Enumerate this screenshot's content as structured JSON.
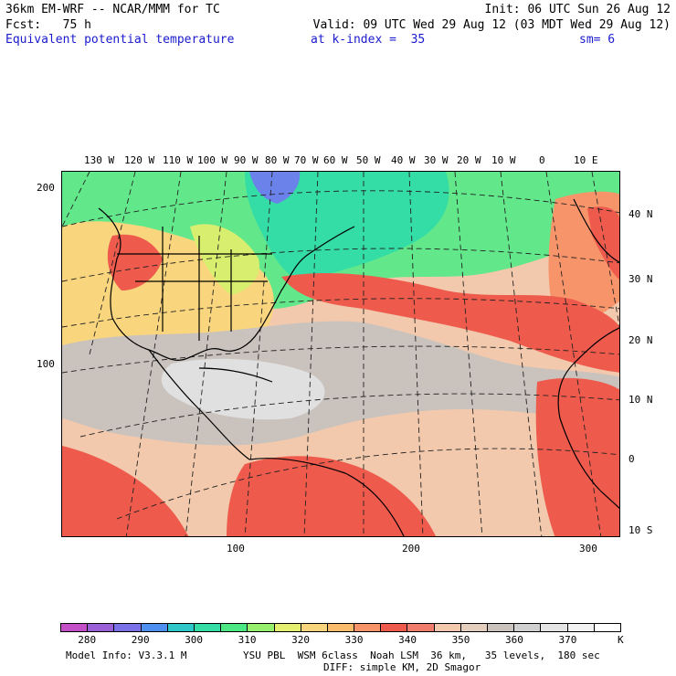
{
  "header": {
    "line1_left": "36km EM-WRF -- NCAR/MMM for TC",
    "line1_right": "Init: 06 UTC Sun 26 Aug 12",
    "line2_left": "Fcst:   75 h",
    "line2_right": "Valid: 09 UTC Wed 29 Aug 12 (03 MDT Wed 29 Aug 12)",
    "line3_field": "Equivalent potential temperature",
    "line3_level": "at k-index =  35",
    "line3_smooth": "sm= 6"
  },
  "map": {
    "top_lon_labels": [
      "130 W",
      "120 W",
      "110 W",
      "100 W",
      "90 W",
      "80 W",
      "70 W",
      "60 W",
      "50 W",
      "40 W",
      "30 W",
      "20 W",
      "10 W",
      "0",
      "10 E"
    ],
    "right_lat_labels": [
      "40 N",
      "30 N",
      "20 N",
      "10 N",
      "0",
      "10 S"
    ],
    "left_ticks": [
      "200",
      "100"
    ],
    "bottom_ticks": [
      "100",
      "200",
      "300"
    ]
  },
  "legend": {
    "labels": [
      "280",
      "290",
      "300",
      "310",
      "320",
      "330",
      "340",
      "350",
      "360",
      "370"
    ],
    "unit": "K",
    "colors": [
      "#c450c8",
      "#9b5fd6",
      "#7a72e6",
      "#4f8ff0",
      "#2fc8c8",
      "#34dca6",
      "#4ce884",
      "#96f06e",
      "#e6f070",
      "#f9d67e",
      "#fbbc6c",
      "#f8946a",
      "#ee5a4c",
      "#f07c6c",
      "#f2c9ac",
      "#e4cfbf",
      "#c9c2bd",
      "#d0d0d0",
      "#e4e4e4",
      "#f2f2f2",
      "#ffffff"
    ]
  },
  "footer": {
    "model_info": "Model Info: V3.3.1 M",
    "physics": "YSU PBL  WSM 6class  Noah LSM  36 km,   35 levels,  180 sec",
    "diffusion": "DIFF: simple KM, 2D Smagor"
  }
}
